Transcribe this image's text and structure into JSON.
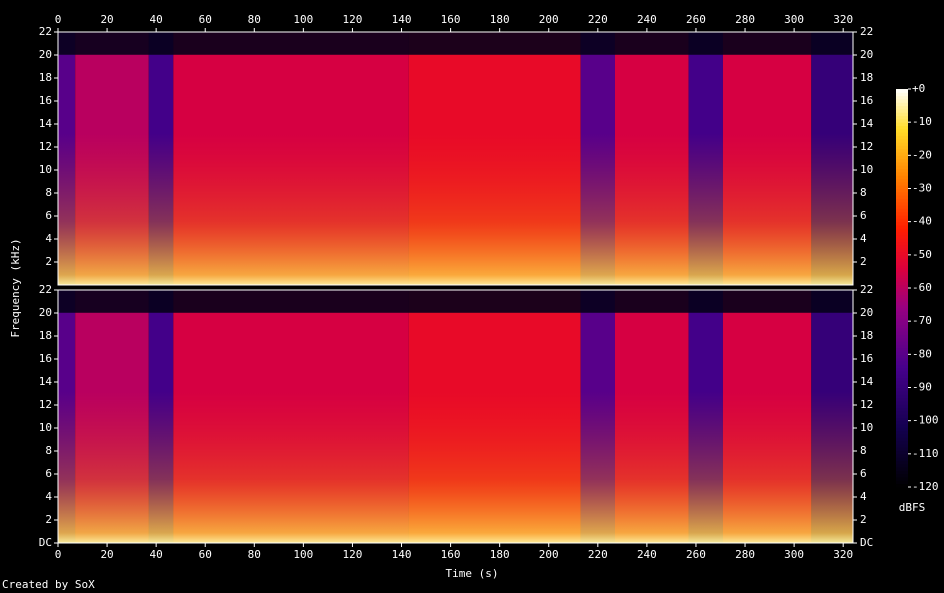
{
  "chart_data": {
    "type": "spectrogram",
    "xlabel": "Time (s)",
    "ylabel": "Frequency (kHz)",
    "footer": "Created by SoX",
    "xlim": [
      0,
      324
    ],
    "xticks": [
      0,
      20,
      40,
      60,
      80,
      100,
      120,
      140,
      160,
      180,
      200,
      220,
      240,
      260,
      280,
      300,
      320
    ],
    "ylim": [
      0,
      22
    ],
    "panels": [
      {
        "yticks": [
          2,
          4,
          6,
          8,
          10,
          12,
          14,
          16,
          18,
          20,
          22
        ]
      },
      {
        "yticks": [
          {
            "value": 0,
            "label": "DC"
          },
          2,
          4,
          6,
          8,
          10,
          12,
          14,
          16,
          18,
          20,
          22
        ]
      }
    ],
    "segments": {
      "x": [
        0,
        7,
        37,
        47,
        143,
        213,
        227,
        257,
        271,
        307
      ],
      "x_end": [
        7,
        37,
        47,
        143,
        213,
        227,
        257,
        271,
        307,
        324
      ],
      "values": [
        -80,
        -60,
        -85,
        -55,
        -50,
        -80,
        -55,
        -85,
        -55,
        -90
      ]
    },
    "colorbar": {
      "label": "dBFS",
      "lim": [
        -120,
        0
      ],
      "ticks": [
        {
          "value": 0,
          "label": "+0"
        },
        -10,
        -20,
        -30,
        -40,
        -50,
        -60,
        -70,
        -80,
        -90,
        -100,
        -110,
        -120
      ]
    }
  }
}
